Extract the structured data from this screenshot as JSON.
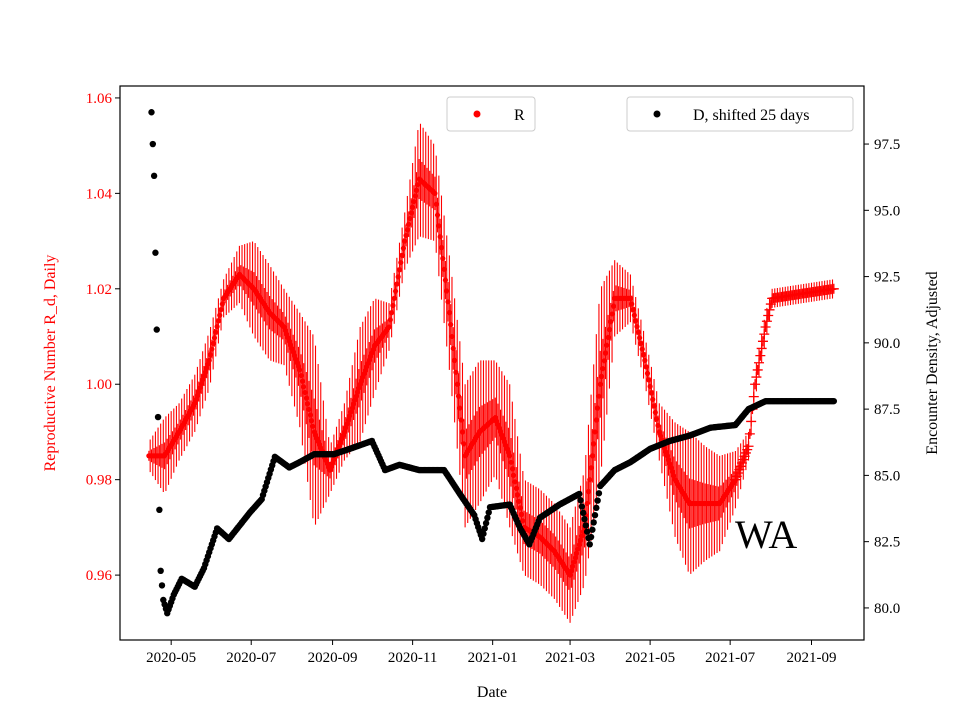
{
  "chart_data": {
    "type": "scatter",
    "annotation": "WA",
    "xlabel": "Date",
    "ylabel_left": "Reproductive Number R_d, Daily",
    "ylabel_right": "Encounter Density, Adjusted",
    "xlim": [
      "2020-03-23",
      "2021-10-11"
    ],
    "ylim_left": [
      0.9464,
      1.0625
    ],
    "ylim_right": [
      78.79,
      99.69
    ],
    "x_ticks": [
      "2020-05",
      "2020-07",
      "2020-09",
      "2020-11",
      "2021-01",
      "2021-03",
      "2021-05",
      "2021-07",
      "2021-09"
    ],
    "y_ticks_left": [
      "0.96",
      "0.98",
      "1.00",
      "1.02",
      "1.04",
      "1.06"
    ],
    "y_ticks_right": [
      "80.0",
      "82.5",
      "85.0",
      "87.5",
      "90.0",
      "92.5",
      "95.0",
      "97.5"
    ],
    "grid": false,
    "colors": {
      "R": "#ff0000",
      "D": "#000000",
      "left_axis_text": "#ff0000"
    },
    "legends": [
      {
        "label": "R",
        "placement": "top-center",
        "marker": "dot",
        "color": "#ff0000"
      },
      {
        "label": "D, shifted 25 days",
        "placement": "top-right",
        "marker": "dot",
        "color": "#000000"
      }
    ],
    "series": [
      {
        "name": "R",
        "axis": "left",
        "marker": "dot-with-errorbars, plus-markers after 2021-07-05",
        "points": [
          [
            "2020-04-14",
            0.985,
            0.003
          ],
          [
            "2020-04-26",
            0.985,
            0.008
          ],
          [
            "2020-05-07",
            0.99,
            0.006
          ],
          [
            "2020-05-19",
            0.996,
            0.006
          ],
          [
            "2020-05-30",
            1.005,
            0.006
          ],
          [
            "2020-06-10",
            1.018,
            0.004
          ],
          [
            "2020-06-22",
            1.023,
            0.006
          ],
          [
            "2020-07-03",
            1.02,
            0.01
          ],
          [
            "2020-07-15",
            1.015,
            0.01
          ],
          [
            "2020-07-26",
            1.012,
            0.008
          ],
          [
            "2020-08-07",
            1.003,
            0.012
          ],
          [
            "2020-08-18",
            0.99,
            0.02
          ],
          [
            "2020-08-30",
            0.982,
            0.005
          ],
          [
            "2020-09-10",
            0.99,
            0.006
          ],
          [
            "2020-09-22",
            1.0,
            0.012
          ],
          [
            "2020-10-03",
            1.008,
            0.01
          ],
          [
            "2020-10-14",
            1.012,
            0.005
          ],
          [
            "2020-10-26",
            1.03,
            0.006
          ],
          [
            "2020-11-06",
            1.043,
            0.012
          ],
          [
            "2020-11-18",
            1.04,
            0.01
          ],
          [
            "2020-11-29",
            1.015,
            0.012
          ],
          [
            "2020-12-11",
            0.985,
            0.015
          ],
          [
            "2020-12-22",
            0.99,
            0.015
          ],
          [
            "2021-01-03",
            0.993,
            0.012
          ],
          [
            "2021-01-14",
            0.985,
            0.015
          ],
          [
            "2021-01-25",
            0.97,
            0.01
          ],
          [
            "2021-02-06",
            0.968,
            0.01
          ],
          [
            "2021-02-17",
            0.965,
            0.01
          ],
          [
            "2021-03-01",
            0.96,
            0.01
          ],
          [
            "2021-03-12",
            0.97,
            0.012
          ],
          [
            "2021-03-24",
            1.0,
            0.02
          ],
          [
            "2021-04-04",
            1.018,
            0.008
          ],
          [
            "2021-04-16",
            1.018,
            0.005
          ],
          [
            "2021-04-27",
            1.005,
            0.005
          ],
          [
            "2021-05-08",
            0.99,
            0.006
          ],
          [
            "2021-05-20",
            0.98,
            0.012
          ],
          [
            "2021-05-31",
            0.975,
            0.015
          ],
          [
            "2021-06-12",
            0.975,
            0.012
          ],
          [
            "2021-06-23",
            0.975,
            0.01
          ],
          [
            "2021-07-05",
            0.98,
            0.006
          ],
          [
            "2021-07-15",
            0.987,
            0.003
          ],
          [
            "2021-07-20",
            1.0,
            0.003
          ],
          [
            "2021-07-28",
            1.012,
            0.003
          ],
          [
            "2021-08-02",
            1.018,
            0.002
          ],
          [
            "2021-09-18",
            1.02,
            0.002
          ]
        ]
      },
      {
        "name": "D, shifted 25 days",
        "axis": "right",
        "marker": "dot",
        "points": [
          [
            "2020-04-16",
            98.7
          ],
          [
            "2020-04-18",
            96.3
          ],
          [
            "2020-04-19",
            93.4
          ],
          [
            "2020-04-20",
            90.5
          ],
          [
            "2020-04-21",
            87.2
          ],
          [
            "2020-04-22",
            83.7
          ],
          [
            "2020-04-23",
            81.4
          ],
          [
            "2020-04-25",
            80.3
          ],
          [
            "2020-04-28",
            79.8
          ],
          [
            "2020-05-03",
            80.5
          ],
          [
            "2020-05-09",
            81.1
          ],
          [
            "2020-05-19",
            80.8
          ],
          [
            "2020-05-26",
            81.5
          ],
          [
            "2020-06-05",
            83.0
          ],
          [
            "2020-06-14",
            82.6
          ],
          [
            "2020-06-22",
            83.1
          ],
          [
            "2020-06-30",
            83.6
          ],
          [
            "2020-07-09",
            84.1
          ],
          [
            "2020-07-19",
            85.7
          ],
          [
            "2020-07-30",
            85.3
          ],
          [
            "2020-08-07",
            85.5
          ],
          [
            "2020-08-18",
            85.8
          ],
          [
            "2020-09-02",
            85.8
          ],
          [
            "2020-09-14",
            86.0
          ],
          [
            "2020-10-01",
            86.3
          ],
          [
            "2020-10-11",
            85.2
          ],
          [
            "2020-10-22",
            85.4
          ],
          [
            "2020-11-06",
            85.2
          ],
          [
            "2020-11-25",
            85.2
          ],
          [
            "2020-12-07",
            84.3
          ],
          [
            "2020-12-18",
            83.5
          ],
          [
            "2020-12-24",
            82.6
          ],
          [
            "2020-12-30",
            83.8
          ],
          [
            "2021-01-14",
            83.9
          ],
          [
            "2021-01-22",
            83.0
          ],
          [
            "2021-01-29",
            82.4
          ],
          [
            "2021-02-06",
            83.4
          ],
          [
            "2021-02-21",
            83.9
          ],
          [
            "2021-03-08",
            84.3
          ],
          [
            "2021-03-16",
            82.4
          ],
          [
            "2021-03-24",
            84.6
          ],
          [
            "2021-04-04",
            85.2
          ],
          [
            "2021-04-16",
            85.5
          ],
          [
            "2021-05-01",
            86.0
          ],
          [
            "2021-05-16",
            86.3
          ],
          [
            "2021-05-31",
            86.5
          ],
          [
            "2021-06-16",
            86.8
          ],
          [
            "2021-07-05",
            86.9
          ],
          [
            "2021-07-15",
            87.5
          ],
          [
            "2021-07-28",
            87.8
          ],
          [
            "2021-09-18",
            87.8
          ]
        ]
      }
    ]
  }
}
